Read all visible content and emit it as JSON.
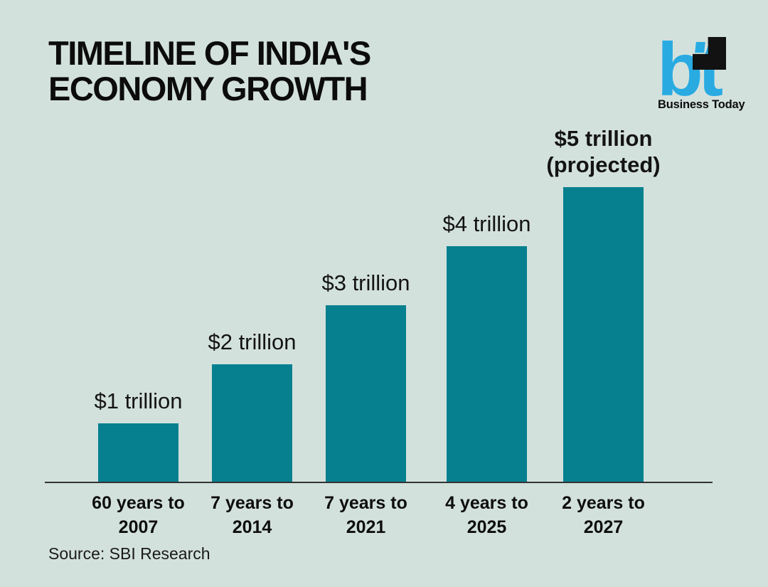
{
  "title": {
    "line1": "TIMELINE OF INDIA'S",
    "line2": "ECONOMY GROWTH"
  },
  "logo": {
    "monogram": "bt",
    "name": "Business Today",
    "blue": "#29abe2"
  },
  "source_note": "Source: SBI Research",
  "colors": {
    "background": "#d3e1dd",
    "bar": "#06808f",
    "axis": "#333333",
    "text": "#101010"
  },
  "chart_data": {
    "type": "bar",
    "title": "Timeline of India's economy growth",
    "unit": "USD trillions",
    "categories": [
      "60 years to 2007",
      "7 years to 2014",
      "7 years to 2021",
      "4 years to 2025",
      "2 years to 2027"
    ],
    "categories_lines": [
      {
        "line1": "60 years to",
        "line2": "2007"
      },
      {
        "line1": "7 years to",
        "line2": "2014"
      },
      {
        "line1": "7 years to",
        "line2": "2021"
      },
      {
        "line1": "4 years to",
        "line2": "2025"
      },
      {
        "line1": "2 years to",
        "line2": "2027"
      }
    ],
    "values": [
      1,
      2,
      3,
      4,
      5
    ],
    "value_labels": [
      "$1 trillion",
      "$2 trillion",
      "$3 trillion",
      "$4 trillion",
      "$5 trillion"
    ],
    "projected_note": "(projected)",
    "ylim": [
      0,
      5
    ],
    "grid": false,
    "legend": false,
    "source": "SBI Research"
  }
}
